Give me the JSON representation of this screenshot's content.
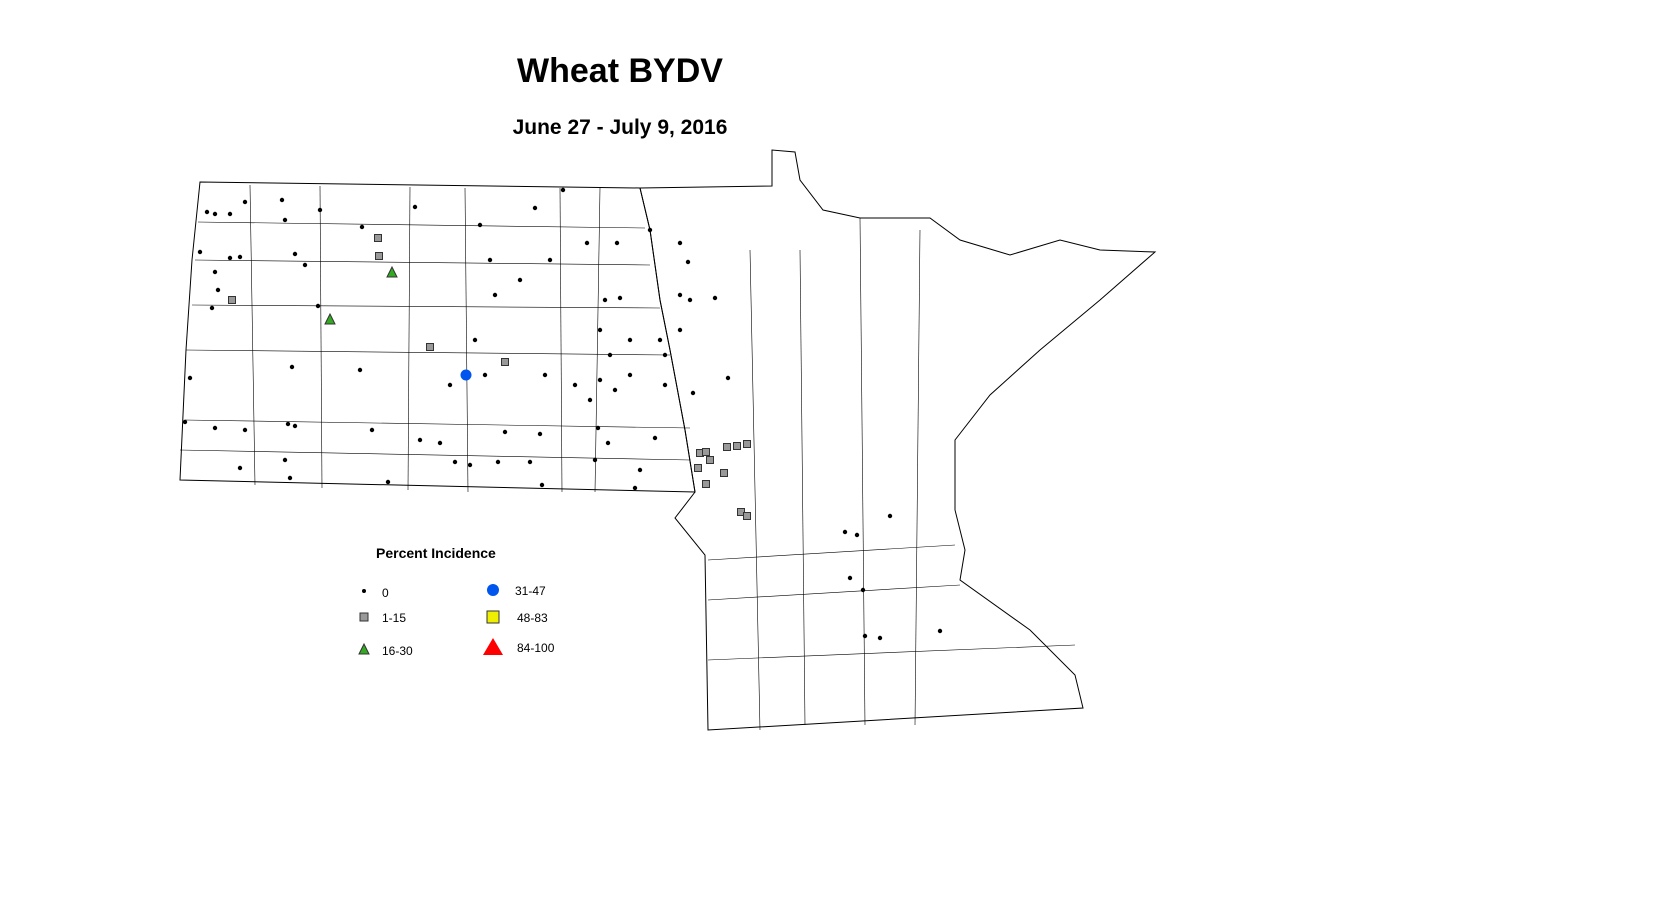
{
  "title": "Wheat BYDV",
  "subtitle": "June 27 - July 9, 2016",
  "legend": {
    "title": "Percent Incidence",
    "items": [
      {
        "label": "0",
        "shape": "dot",
        "color": "#000000"
      },
      {
        "label": "1-15",
        "shape": "square",
        "color": "#999999"
      },
      {
        "label": "16-30",
        "shape": "triangle",
        "color": "#33aa22"
      },
      {
        "label": "31-47",
        "shape": "circle",
        "color": "#0055ee"
      },
      {
        "label": "48-83",
        "shape": "square",
        "color": "#eeee00"
      },
      {
        "label": "84-100",
        "shape": "triangle",
        "color": "#ff0000"
      }
    ]
  }
}
